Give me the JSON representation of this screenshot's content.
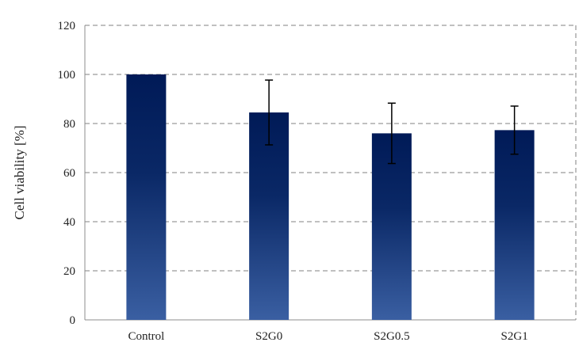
{
  "chart_data": {
    "type": "bar",
    "title": "",
    "xlabel": "",
    "ylabel": "Cell viability [%]",
    "categories": [
      "Control",
      "S2G0",
      "S2G0.5",
      "S2G1"
    ],
    "values": [
      100,
      84.5,
      76,
      77.3
    ],
    "error": [
      0,
      13.2,
      12.3,
      9.8
    ],
    "ylim": [
      0,
      120
    ],
    "yticks": [
      0,
      20,
      40,
      60,
      80,
      100,
      120
    ],
    "grid": true,
    "legend": "none",
    "colors": {
      "bar_top": "#001a57",
      "bar_mid": "#0a2866",
      "bar_bottom": "#3a5fa2",
      "grid": "#808080",
      "error_bar": "#000000"
    }
  }
}
